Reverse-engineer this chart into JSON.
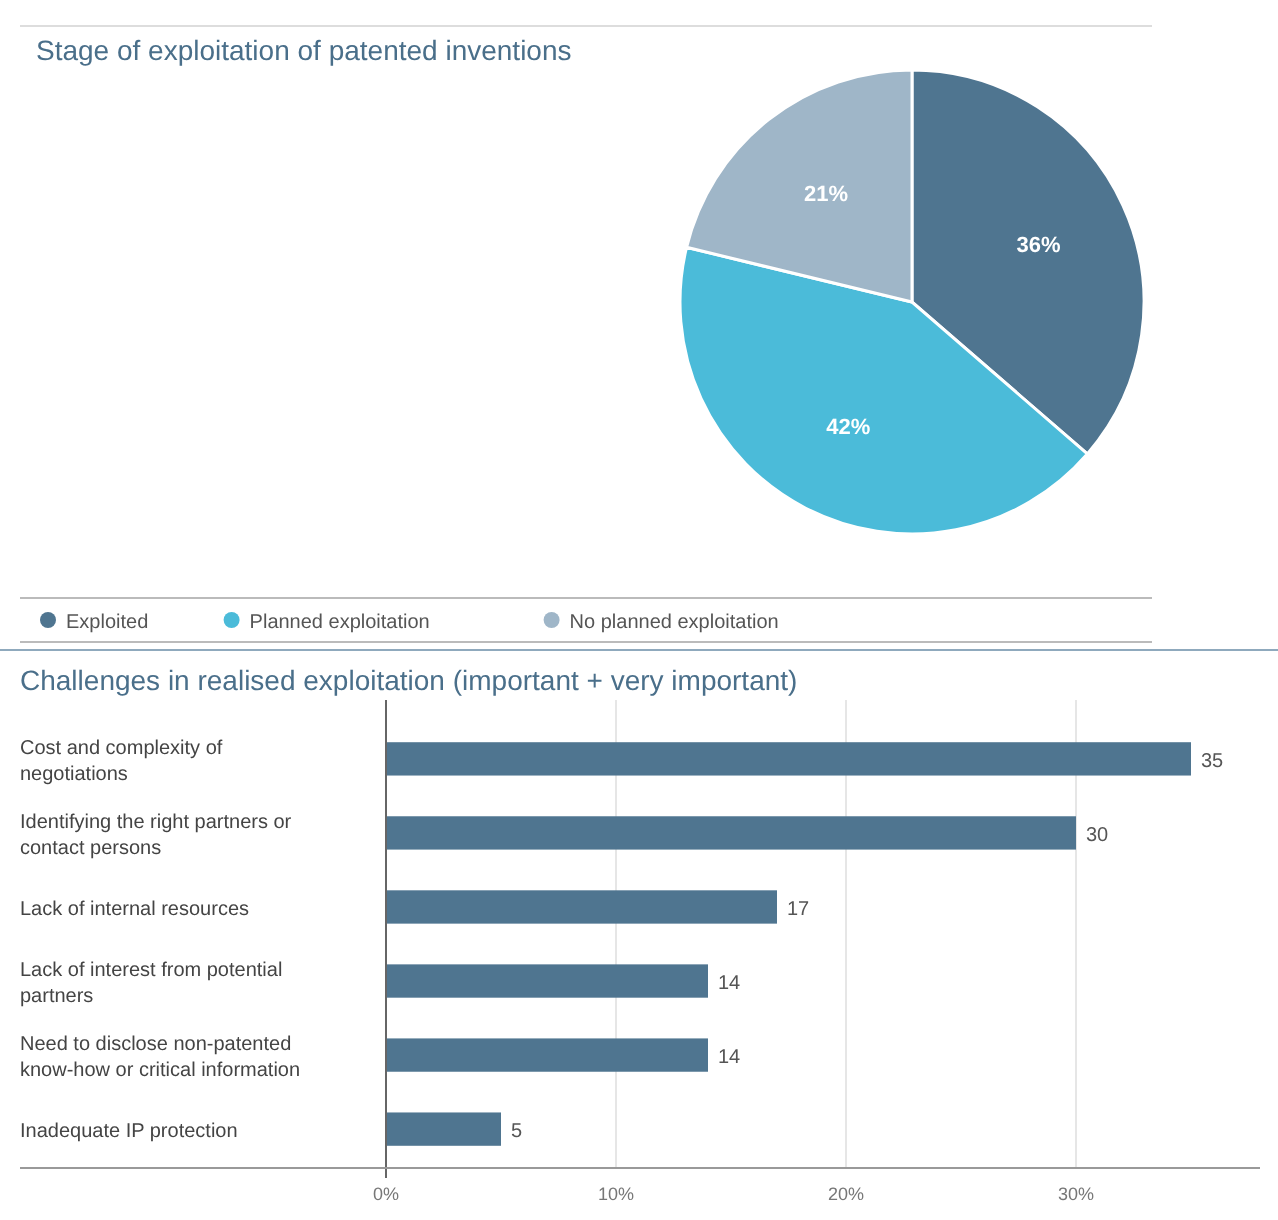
{
  "chart_data": [
    {
      "type": "pie",
      "title": "Stage of exploitation of patented inventions",
      "categories": [
        "Exploited",
        "Planned exploitation",
        "No planned exploitation"
      ],
      "values": [
        36,
        42,
        21
      ],
      "value_labels": [
        "36%",
        "42%",
        "21%"
      ],
      "colors": [
        "#4f7590",
        "#4bbbd9",
        "#9fb6c8"
      ],
      "legend": "bottom"
    },
    {
      "type": "bar",
      "orientation": "horizontal",
      "title": "Challenges in realised exploitation (important + very important)",
      "categories": [
        "Cost and complexity of negotiations",
        "Identifying the right partners or contact persons",
        "Lack of internal resources",
        "Lack of interest from potential partners",
        "Need to disclose non-patented know-how or critical information",
        "Inadequate IP protection"
      ],
      "values": [
        35,
        30,
        17,
        14,
        14,
        5
      ],
      "color": "#4f7590",
      "data_labels": true,
      "xlim": [
        0,
        38
      ],
      "xticks": [
        {
          "value": 0,
          "label": "0%"
        },
        {
          "value": 10,
          "label": "10%"
        },
        {
          "value": 20,
          "label": "20%"
        },
        {
          "value": 30,
          "label": "30%"
        }
      ],
      "grid": "x"
    }
  ]
}
